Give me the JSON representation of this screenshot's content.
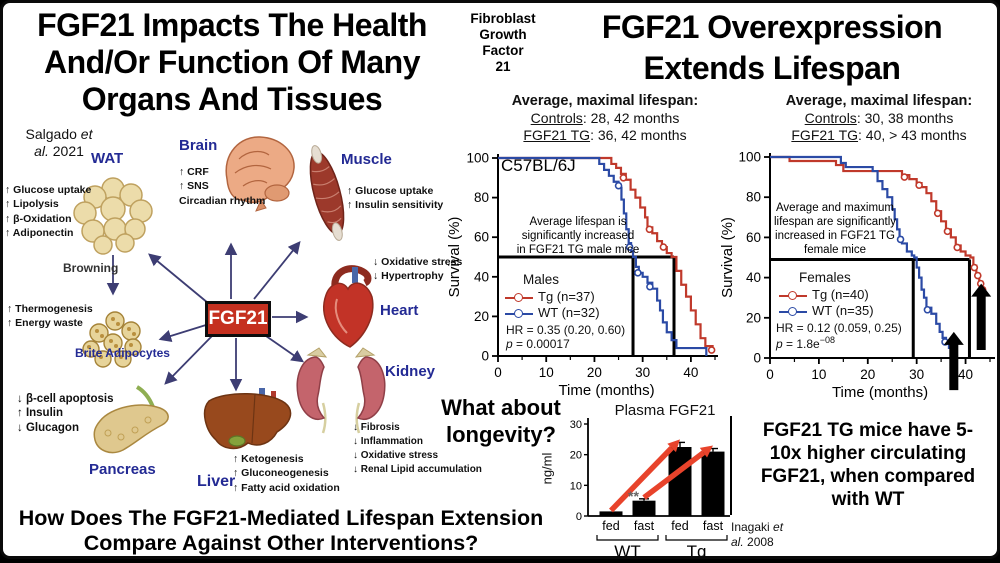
{
  "slide": {
    "left": {
      "title_lines": [
        "FGF21 Impacts The Health",
        "And/Or Function Of Many",
        "Organs And Tissues"
      ],
      "citation": {
        "pre": "Salgado",
        "it1": "et",
        "it2": "al.",
        "post": "2021"
      },
      "hub_label": "FGF21",
      "browning_label": "Browning",
      "organs": {
        "wat": {
          "name": "WAT",
          "effects": [
            "↑ Glucose uptake",
            "↑ Lipolysis",
            "↑ β-Oxidation",
            "↑ Adiponectin"
          ]
        },
        "brite": {
          "name": "Brite Adipocytes",
          "effects": [
            "↑ Thermogenesis",
            "↑ Energy waste"
          ]
        },
        "brain": {
          "name": "Brain",
          "effects": [
            "↑ CRF",
            "↑ SNS",
            "Circadian rhythm"
          ]
        },
        "muscle": {
          "name": "Muscle",
          "effects": [
            "↑ Glucose uptake",
            "↑ Insulin sensitivity"
          ]
        },
        "heart": {
          "name": "Heart",
          "effects": [
            "↓ Oxidative stress",
            "↓ Hypertrophy"
          ]
        },
        "kidney": {
          "name": "Kidney",
          "effects": [
            "↓ Fibrosis",
            "↓ Inflammation",
            "↓ Oxidative stress",
            "↓ Renal Lipid accumulation"
          ]
        },
        "liver": {
          "name": "Liver",
          "effects": [
            "↑ Ketogenesis",
            "↑ Gluconeogenesis",
            "↑ Fatty acid oxidation"
          ]
        },
        "pancreas": {
          "name": "Pancreas",
          "effects": [
            "↓ β-cell apoptosis",
            "↑ Insulin",
            "↓ Glucagon"
          ]
        }
      },
      "question_lines": [
        "How Does The FGF21-Mediated Lifespan Extension",
        "Compare Against Other Interventions?"
      ]
    },
    "center": {
      "acronym_lines": [
        "Fibroblast",
        "Growth",
        "Factor",
        "21"
      ]
    },
    "right": {
      "title_lines": [
        "FGF21 Overexpression",
        "Extends Lifespan"
      ],
      "males_stats": {
        "heading": "Average, maximal lifespan:",
        "controls_label": "Controls",
        "controls_rest": ": 28, 42 months",
        "tg_label": "FGF21 TG",
        "tg_rest": ": 36, 42 months"
      },
      "females_stats": {
        "heading": "Average, maximal lifespan:",
        "controls_label": "Controls",
        "controls_rest": ": 30, 38 months",
        "tg_label": "FGF21 TG",
        "tg_rest": ": 40, > 43 months"
      },
      "what_about_lines": [
        "What about",
        "longevity?"
      ],
      "tg_statement_lines": [
        "FGF21 TG mice have 5-",
        "10x higher circulating",
        "FGF21, when compared",
        "with WT"
      ],
      "citation": {
        "pre": "Inagaki",
        "it1": "et",
        "it2": "al.",
        "post": "2008"
      }
    }
  },
  "colors": {
    "accent_red": "#c5301f",
    "curve_red": "#c0392b",
    "curve_blue": "#2b4aa5",
    "navy_label": "#232a94",
    "arrow_red": "#e8432b"
  },
  "chart_data": [
    {
      "id": "km_males",
      "type": "line",
      "subtype": "kaplan-meier-step",
      "strain_label": "C57BL/6J",
      "annotation_lines": [
        "Average lifespan is",
        "significantly increased",
        "in FGF21 TG male mice"
      ],
      "legend_title": "Males",
      "xlabel": "Time (months)",
      "ylabel": "Survival (%)",
      "xlim": [
        0,
        45
      ],
      "ylim": [
        0,
        100
      ],
      "xticks": [
        0,
        10,
        20,
        30,
        40
      ],
      "yticks": [
        0,
        20,
        40,
        60,
        80,
        100
      ],
      "xminor": 5,
      "medians": {
        "wt": 28,
        "tg": 36.5,
        "level": 50
      },
      "hr_text": "HR = 0.35 (0.20, 0.60)",
      "p_var": "p",
      "p_rest": " = 0.00017",
      "series": [
        {
          "name": "Tg (n=37)",
          "color": "#c0392b",
          "steps": [
            [
              0,
              100
            ],
            [
              23.5,
              97
            ],
            [
              24.5,
              95
            ],
            [
              25.5,
              92
            ],
            [
              26.5,
              89
            ],
            [
              27.5,
              84
            ],
            [
              28.5,
              80
            ],
            [
              29.5,
              75
            ],
            [
              30.5,
              70
            ],
            [
              31,
              65
            ],
            [
              32,
              62
            ],
            [
              33,
              58
            ],
            [
              34,
              55
            ],
            [
              35,
              52
            ],
            [
              36,
              50
            ],
            [
              37,
              43
            ],
            [
              38,
              36
            ],
            [
              39,
              30
            ],
            [
              40,
              23
            ],
            [
              41,
              16
            ],
            [
              42,
              9
            ],
            [
              43,
              5
            ],
            [
              44.5,
              3
            ]
          ],
          "markers": [
            [
              26,
              90
            ],
            [
              31.4,
              64
            ],
            [
              34.3,
              55
            ],
            [
              44.3,
              3
            ]
          ]
        },
        {
          "name": "WT (n=32)",
          "color": "#2b4aa5",
          "steps": [
            [
              0,
              100
            ],
            [
              21,
              97
            ],
            [
              22,
              94
            ],
            [
              23,
              91
            ],
            [
              24,
              88
            ],
            [
              25,
              85
            ],
            [
              25.6,
              79
            ],
            [
              26.1,
              72
            ],
            [
              26.6,
              64
            ],
            [
              27.1,
              57
            ],
            [
              27.6,
              53
            ],
            [
              28,
              50
            ],
            [
              28.6,
              45
            ],
            [
              29.2,
              42
            ],
            [
              30,
              40
            ],
            [
              31,
              37
            ],
            [
              32,
              34
            ],
            [
              33,
              28
            ],
            [
              33.6,
              23
            ],
            [
              34.2,
              17
            ],
            [
              35,
              12
            ],
            [
              36,
              8
            ],
            [
              37,
              4
            ],
            [
              43.2,
              0
            ]
          ],
          "markers": [
            [
              25,
              86
            ],
            [
              27.3,
              55
            ],
            [
              29,
              42
            ],
            [
              31.5,
              35
            ]
          ]
        }
      ]
    },
    {
      "id": "km_females",
      "type": "line",
      "subtype": "kaplan-meier-step",
      "strain_label": "",
      "annotation_lines": [
        "Average and maximum",
        "lifespan are significantly",
        "increased in FGF21 TG",
        "female mice"
      ],
      "legend_title": "Females",
      "xlabel": "Time (months)",
      "ylabel": "Survival (%)",
      "xlim": [
        0,
        45
      ],
      "ylim": [
        0,
        100
      ],
      "xticks": [
        0,
        10,
        20,
        30,
        40
      ],
      "yticks": [
        0,
        20,
        40,
        60,
        80,
        100
      ],
      "xminor": 5,
      "medians": {
        "wt": 29.3,
        "tg": 40.8,
        "level": 49
      },
      "hr_text": "HR = 0.12 (0.059, 0.25)",
      "p_var": "p",
      "p_rest": " = 1.8e",
      "p_sup": "−08",
      "arrows": [
        {
          "x": 37.6,
          "from": -16,
          "to": 13
        },
        {
          "x": 43.2,
          "from": 4,
          "to": 37
        }
      ],
      "series": [
        {
          "name": "Tg (n=40)",
          "color": "#c0392b",
          "steps": [
            [
              0,
              100
            ],
            [
              4,
              98
            ],
            [
              13.5,
              96
            ],
            [
              15,
              93
            ],
            [
              27,
              91
            ],
            [
              28.5,
              89
            ],
            [
              30,
              87
            ],
            [
              31,
              85
            ],
            [
              32,
              82
            ],
            [
              33,
              78
            ],
            [
              34,
              73
            ],
            [
              35,
              68
            ],
            [
              36,
              64
            ],
            [
              37,
              60
            ],
            [
              38,
              56
            ],
            [
              39,
              53
            ],
            [
              40,
              51
            ],
            [
              41,
              50
            ],
            [
              41.6,
              46
            ],
            [
              42.2,
              42
            ],
            [
              42.8,
              38
            ],
            [
              43.4,
              34
            ]
          ],
          "markers": [
            [
              27.5,
              90
            ],
            [
              30.5,
              86
            ],
            [
              34.3,
              72
            ],
            [
              36.3,
              63
            ],
            [
              38.3,
              55
            ],
            [
              41.8,
              45
            ],
            [
              42.5,
              41
            ],
            [
              43.1,
              37
            ],
            [
              43.5,
              34
            ]
          ]
        },
        {
          "name": "WT (n=35)",
          "color": "#2b4aa5",
          "steps": [
            [
              0,
              100
            ],
            [
              14.5,
              97
            ],
            [
              15.5,
              95
            ],
            [
              21,
              93
            ],
            [
              22,
              88
            ],
            [
              23,
              84
            ],
            [
              24,
              80
            ],
            [
              25,
              74
            ],
            [
              25.5,
              69
            ],
            [
              26,
              64
            ],
            [
              26.5,
              60
            ],
            [
              27,
              57
            ],
            [
              28,
              53
            ],
            [
              29,
              51
            ],
            [
              29.5,
              50
            ],
            [
              30,
              45
            ],
            [
              30.5,
              40
            ],
            [
              31,
              34
            ],
            [
              31.5,
              30
            ],
            [
              32,
              25
            ],
            [
              33,
              22
            ],
            [
              34,
              17
            ],
            [
              34.7,
              13
            ],
            [
              35.3,
              10
            ],
            [
              36,
              8
            ],
            [
              36.6,
              5
            ],
            [
              37,
              0
            ]
          ],
          "markers": [
            [
              26.7,
              59
            ],
            [
              32.2,
              24
            ],
            [
              35.8,
              8
            ]
          ]
        }
      ]
    },
    {
      "id": "plasma_fgf21",
      "type": "bar",
      "title": "Plasma FGF21",
      "ylabel": "ng/ml",
      "ylim": [
        0,
        30
      ],
      "yticks": [
        0,
        10,
        20,
        30
      ],
      "categories": [
        "fed",
        "fast",
        "fed",
        "fast"
      ],
      "groups": [
        {
          "label": "WT",
          "span": [
            0,
            1
          ]
        },
        {
          "label": "Tg",
          "span": [
            2,
            3
          ]
        }
      ],
      "values": [
        1.5,
        5,
        22.5,
        21
      ],
      "errors": [
        0,
        0.6,
        1.5,
        1
      ],
      "sig_label": "**",
      "sig_bar_index": 1,
      "bar_color": "#000000",
      "arrow_color": "#e8432b",
      "arrows": [
        {
          "from": [
            0,
            1.8
          ],
          "to": [
            2,
            25
          ]
        },
        {
          "from": [
            1,
            6
          ],
          "to": [
            3,
            23
          ]
        }
      ]
    }
  ]
}
